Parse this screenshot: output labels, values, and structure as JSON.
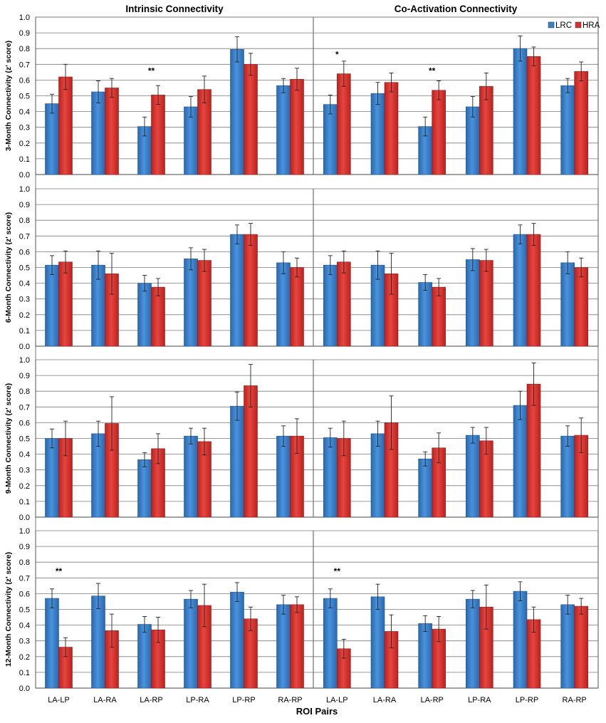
{
  "chart_data": {
    "type": "bar",
    "columns": [
      "Intrinsic Connectivity",
      "Co-Activation Connectivity"
    ],
    "row_ylabels": [
      "3-Month Connectivity (z' score)",
      "6-Month Connectivity (z' score)",
      "9-Month Connectivity (z' score)",
      "12-Month Connectivity (z' score)"
    ],
    "xlabel": "ROI Pairs",
    "categories": [
      "LA-LP",
      "LA-RA",
      "LA-RP",
      "LP-RA",
      "LP-RP",
      "RA-RP"
    ],
    "ylim": [
      0,
      1.0
    ],
    "yticks": [
      "0.0",
      "0.1",
      "0.2",
      "0.3",
      "0.4",
      "0.5",
      "0.6",
      "0.7",
      "0.8",
      "0.9",
      "1.0"
    ],
    "grid": true,
    "legend": {
      "placement": "top-right",
      "entries": [
        "LRC",
        "HRA"
      ]
    },
    "colors": {
      "LRC": "#3a7fc8",
      "HRA": "#d9312f"
    },
    "panels": [
      {
        "row": 0,
        "col": 0,
        "series": [
          {
            "name": "LRC",
            "values": [
              0.45,
              0.525,
              0.305,
              0.43,
              0.795,
              0.565
            ],
            "errors": [
              0.06,
              0.07,
              0.06,
              0.065,
              0.08,
              0.045
            ]
          },
          {
            "name": "HRA",
            "values": [
              0.62,
              0.55,
              0.505,
              0.54,
              0.7,
              0.605
            ],
            "errors": [
              0.08,
              0.06,
              0.06,
              0.085,
              0.07,
              0.07
            ]
          }
        ],
        "annotations": [
          {
            "category": "LA-RP",
            "text": "**",
            "y": 0.64
          }
        ]
      },
      {
        "row": 0,
        "col": 1,
        "series": [
          {
            "name": "LRC",
            "values": [
              0.445,
              0.515,
              0.305,
              0.43,
              0.8,
              0.565
            ],
            "errors": [
              0.06,
              0.07,
              0.06,
              0.065,
              0.08,
              0.045
            ]
          },
          {
            "name": "HRA",
            "values": [
              0.64,
              0.585,
              0.535,
              0.56,
              0.75,
              0.655
            ],
            "errors": [
              0.08,
              0.06,
              0.06,
              0.085,
              0.06,
              0.06
            ]
          }
        ],
        "annotations": [
          {
            "category": "LA-LP",
            "text": "*",
            "y": 0.745
          },
          {
            "category": "LA-RP",
            "text": "**",
            "y": 0.64
          }
        ]
      },
      {
        "row": 1,
        "col": 0,
        "series": [
          {
            "name": "LRC",
            "values": [
              0.515,
              0.515,
              0.4,
              0.555,
              0.71,
              0.53
            ],
            "errors": [
              0.06,
              0.09,
              0.05,
              0.07,
              0.06,
              0.07
            ]
          },
          {
            "name": "HRA",
            "values": [
              0.535,
              0.46,
              0.375,
              0.545,
              0.71,
              0.5
            ],
            "errors": [
              0.07,
              0.13,
              0.055,
              0.07,
              0.07,
              0.06
            ]
          }
        ],
        "annotations": []
      },
      {
        "row": 1,
        "col": 1,
        "series": [
          {
            "name": "LRC",
            "values": [
              0.515,
              0.515,
              0.405,
              0.55,
              0.71,
              0.53
            ],
            "errors": [
              0.06,
              0.09,
              0.05,
              0.07,
              0.06,
              0.07
            ]
          },
          {
            "name": "HRA",
            "values": [
              0.535,
              0.46,
              0.375,
              0.545,
              0.71,
              0.5
            ],
            "errors": [
              0.07,
              0.13,
              0.055,
              0.07,
              0.07,
              0.06
            ]
          }
        ],
        "annotations": []
      },
      {
        "row": 2,
        "col": 0,
        "series": [
          {
            "name": "LRC",
            "values": [
              0.5,
              0.53,
              0.365,
              0.515,
              0.705,
              0.515
            ],
            "errors": [
              0.06,
              0.08,
              0.045,
              0.05,
              0.09,
              0.065
            ]
          },
          {
            "name": "HRA",
            "values": [
              0.5,
              0.595,
              0.435,
              0.48,
              0.835,
              0.515
            ],
            "errors": [
              0.11,
              0.17,
              0.095,
              0.085,
              0.135,
              0.11
            ]
          }
        ],
        "annotations": []
      },
      {
        "row": 2,
        "col": 1,
        "series": [
          {
            "name": "LRC",
            "values": [
              0.505,
              0.53,
              0.37,
              0.52,
              0.71,
              0.515
            ],
            "errors": [
              0.06,
              0.08,
              0.045,
              0.05,
              0.09,
              0.065
            ]
          },
          {
            "name": "HRA",
            "values": [
              0.5,
              0.6,
              0.44,
              0.485,
              0.845,
              0.52
            ],
            "errors": [
              0.11,
              0.17,
              0.095,
              0.085,
              0.135,
              0.11
            ]
          }
        ],
        "annotations": []
      },
      {
        "row": 3,
        "col": 0,
        "series": [
          {
            "name": "LRC",
            "values": [
              0.57,
              0.585,
              0.405,
              0.565,
              0.61,
              0.53
            ],
            "errors": [
              0.06,
              0.08,
              0.05,
              0.055,
              0.06,
              0.06
            ]
          },
          {
            "name": "HRA",
            "values": [
              0.26,
              0.365,
              0.37,
              0.525,
              0.44,
              0.53
            ],
            "errors": [
              0.06,
              0.105,
              0.08,
              0.135,
              0.075,
              0.05
            ]
          }
        ],
        "annotations": [
          {
            "category": "LA-LP",
            "text": "**",
            "y": 0.725
          }
        ]
      },
      {
        "row": 3,
        "col": 1,
        "series": [
          {
            "name": "LRC",
            "values": [
              0.57,
              0.58,
              0.41,
              0.565,
              0.615,
              0.53
            ],
            "errors": [
              0.06,
              0.08,
              0.05,
              0.055,
              0.06,
              0.06
            ]
          },
          {
            "name": "HRA",
            "values": [
              0.25,
              0.36,
              0.375,
              0.515,
              0.435,
              0.52
            ],
            "errors": [
              0.06,
              0.105,
              0.08,
              0.14,
              0.08,
              0.05
            ]
          }
        ],
        "annotations": [
          {
            "category": "LA-LP",
            "text": "**",
            "y": 0.725
          }
        ]
      }
    ]
  }
}
